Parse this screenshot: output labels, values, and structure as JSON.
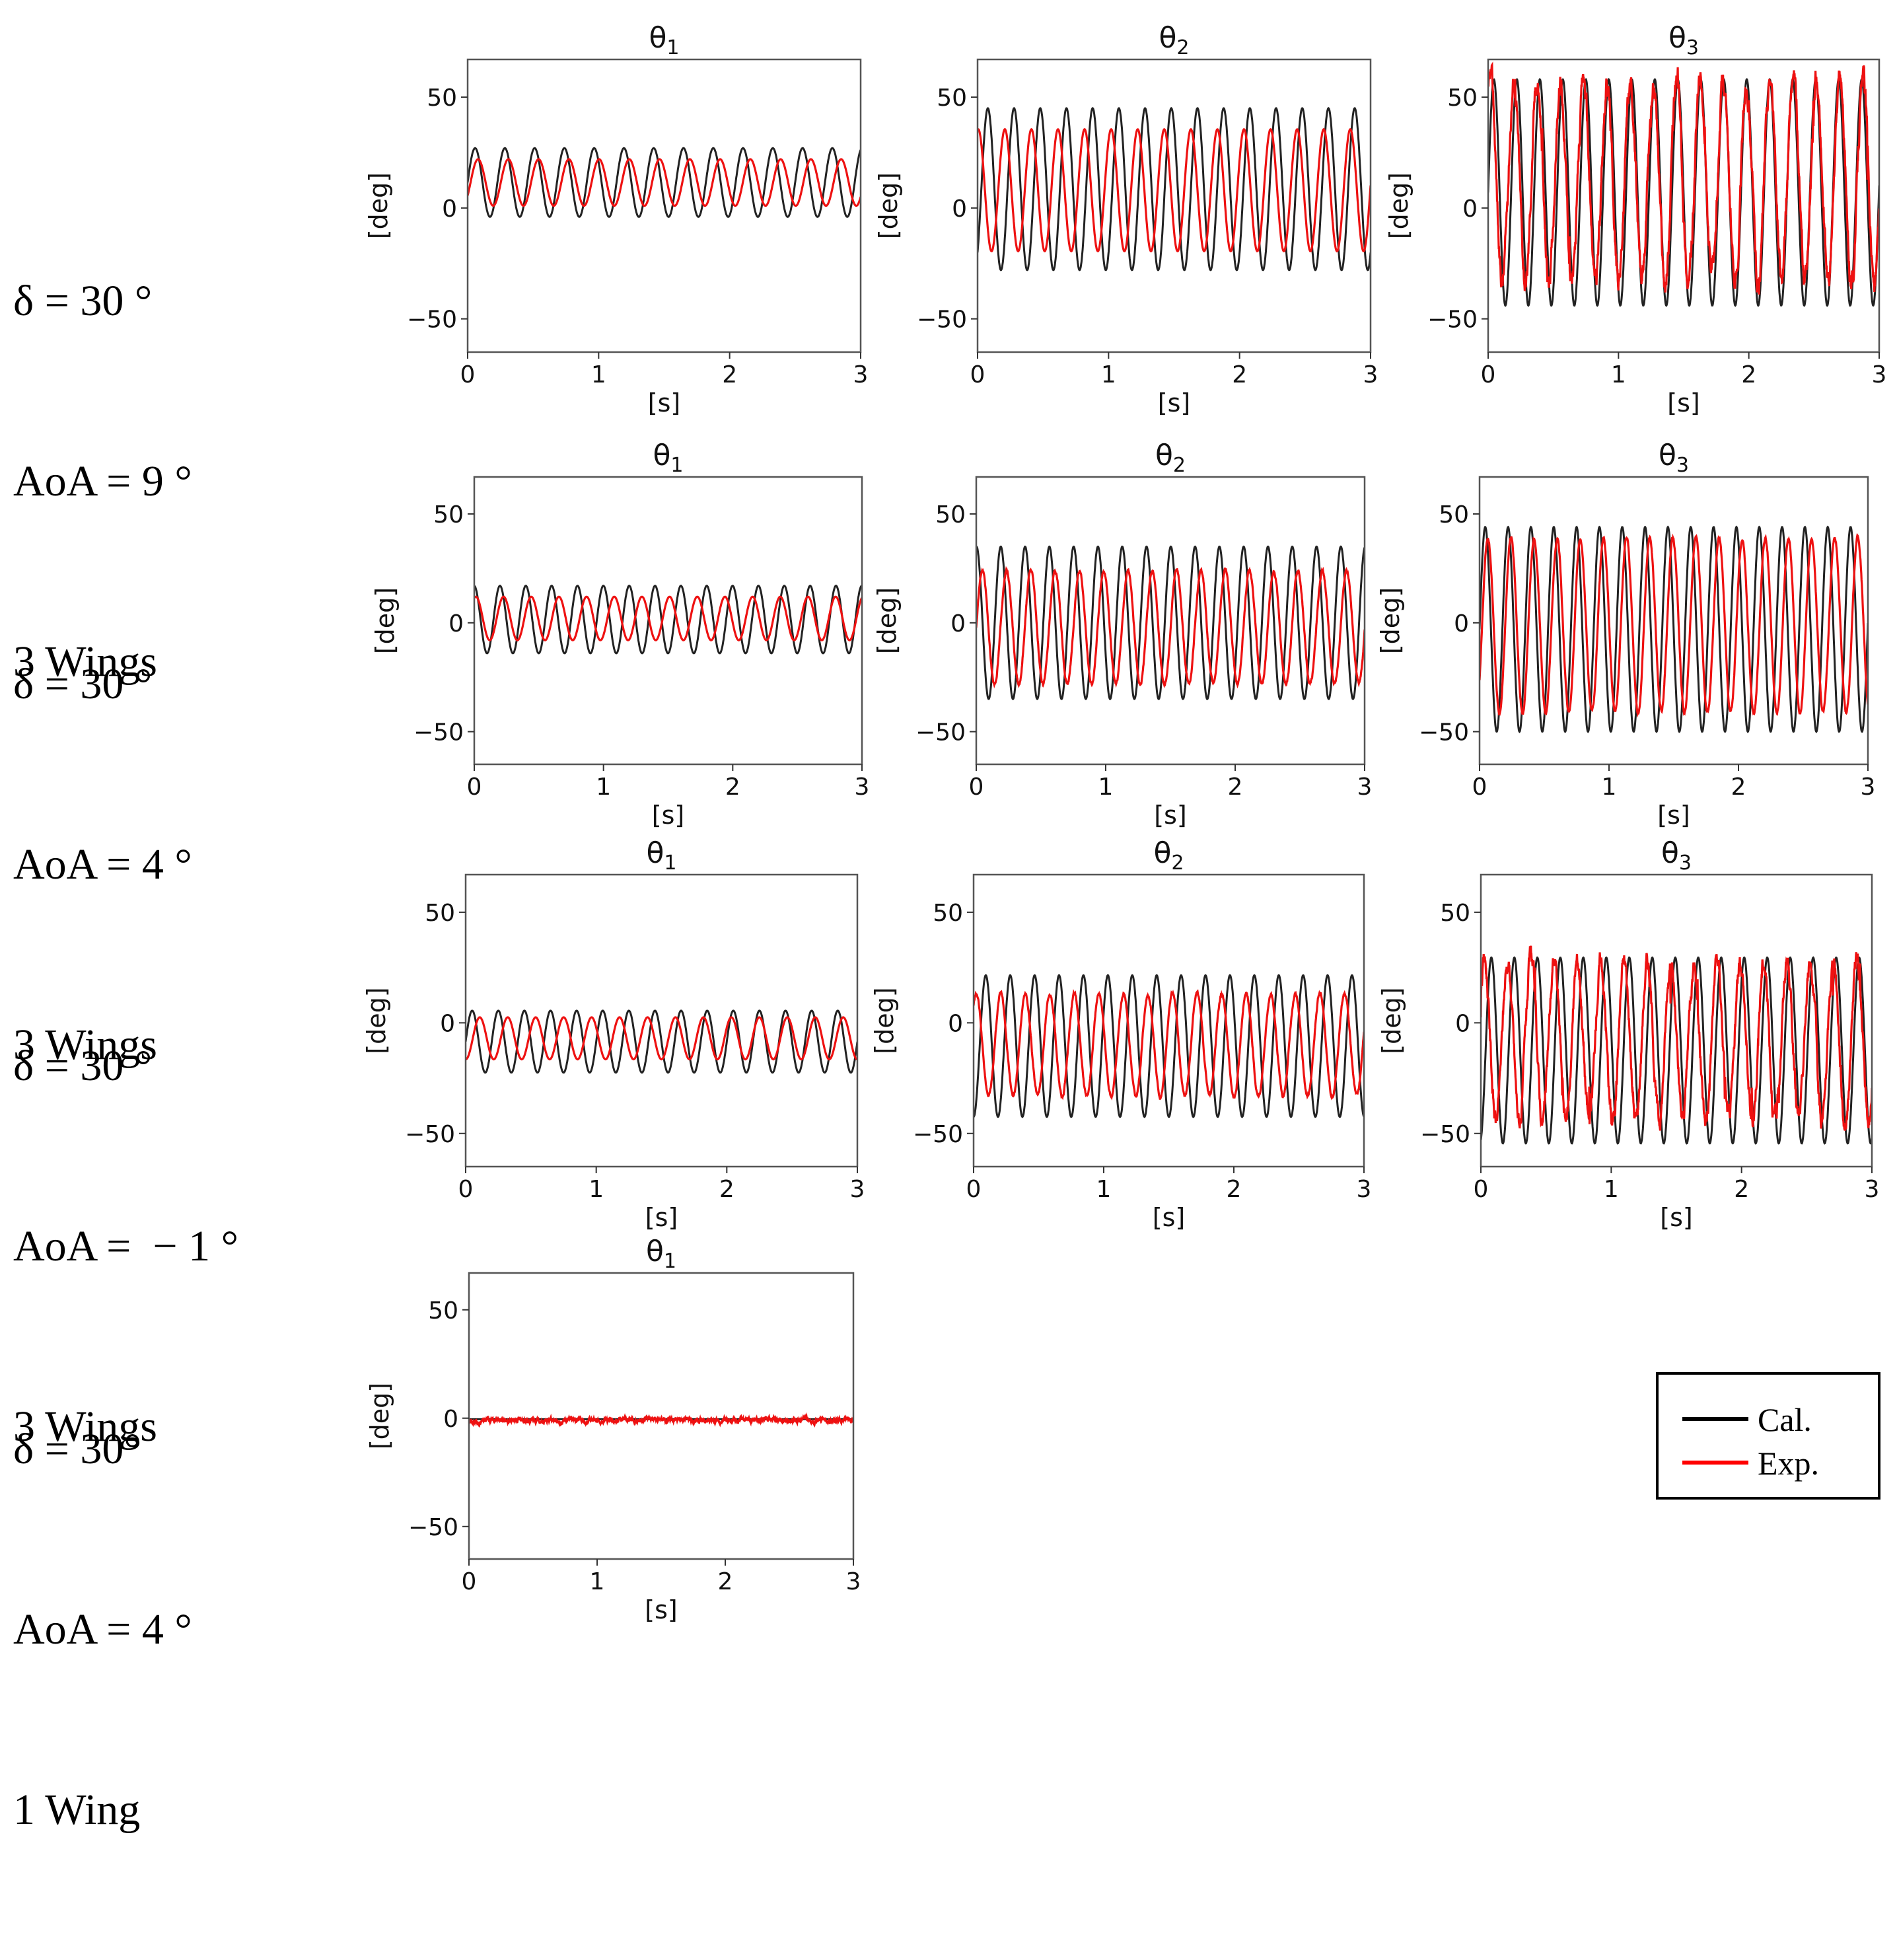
{
  "row_labels": [
    {
      "delta": "δ = 30 °",
      "aoa": "AoA = 9 °",
      "wings": "3 Wings"
    },
    {
      "delta": "δ = 30 °",
      "aoa": "AoA = 4 °",
      "wings": "3 Wings"
    },
    {
      "delta": "δ = 30 °",
      "aoa": "AoA =  − 1 °",
      "wings": "3 Wings"
    },
    {
      "delta": "δ = 30°",
      "aoa": "AoA = 4 °",
      "wings": "1 Wing"
    }
  ],
  "legend": [
    {
      "label": "Cal.",
      "color": "#000000"
    },
    {
      "label": "Exp.",
      "color": "#ff0000"
    }
  ],
  "colors": {
    "cal": "#222222",
    "exp": "#ee1111",
    "frame": "#555555"
  },
  "chart_data": [
    {
      "type": "line",
      "row": 0,
      "col": 0,
      "title": "θ",
      "title_sub": "1",
      "xlabel": "[s]",
      "ylabel": "[deg]",
      "xlim": [
        0,
        3
      ],
      "ylim": [
        -65,
        67
      ],
      "xticks": [
        0,
        1,
        2,
        3
      ],
      "yticks": [
        -50,
        0,
        50
      ],
      "ytick_labels": [
        "−50",
        "0",
        "50"
      ],
      "series": [
        {
          "name": "Cal.",
          "approx": {
            "mean": 11.5,
            "amp": 15.5,
            "freq": 4.4,
            "phase": 0.0
          }
        },
        {
          "name": "Exp.",
          "approx": {
            "mean": 11.5,
            "amp": 10.5,
            "freq": 4.33,
            "phase": -0.6,
            "noise": 0
          }
        }
      ]
    },
    {
      "type": "line",
      "row": 0,
      "col": 1,
      "title": "θ",
      "title_sub": "2",
      "xlabel": "[s]",
      "ylabel": "[deg]",
      "xlim": [
        0,
        3
      ],
      "ylim": [
        -65,
        67
      ],
      "xticks": [
        0,
        1,
        2,
        3
      ],
      "yticks": [
        -50,
        0,
        50
      ],
      "ytick_labels": [
        "−50",
        "0",
        "50"
      ],
      "series": [
        {
          "name": "Cal.",
          "approx": {
            "mean": 8.5,
            "amp": 36.5,
            "freq": 5.0,
            "phase": -0.9
          }
        },
        {
          "name": "Exp.",
          "approx": {
            "mean": 8.0,
            "amp": 27.5,
            "freq": 4.93,
            "phase": 1.4,
            "noise": 0
          }
        }
      ]
    },
    {
      "type": "line",
      "row": 0,
      "col": 2,
      "title": "θ",
      "title_sub": "3",
      "xlabel": "[s]",
      "ylabel": "[deg]",
      "xlim": [
        0,
        3
      ],
      "ylim": [
        -65,
        67
      ],
      "xticks": [
        0,
        1,
        2,
        3
      ],
      "yticks": [
        -50,
        0,
        50
      ],
      "ytick_labels": [
        "−50",
        "0",
        "50"
      ],
      "series": [
        {
          "name": "Cal.",
          "approx": {
            "mean": 7.0,
            "amp": 51.0,
            "freq": 5.67,
            "phase": 0.0
          }
        },
        {
          "name": "Exp.",
          "approx": {
            "mean": 12.0,
            "amp": 45.0,
            "freq": 5.6,
            "phase": 0.9,
            "noise": 7
          }
        }
      ]
    },
    {
      "type": "line",
      "row": 1,
      "col": 0,
      "title": "θ",
      "title_sub": "1",
      "xlabel": "[s]",
      "ylabel": "[deg]",
      "xlim": [
        0,
        3
      ],
      "ylim": [
        -65,
        67
      ],
      "xticks": [
        0,
        1,
        2,
        3
      ],
      "yticks": [
        -50,
        0,
        50
      ],
      "ytick_labels": [
        "−50",
        "0",
        "50"
      ],
      "series": [
        {
          "name": "Cal.",
          "approx": {
            "mean": 1.5,
            "amp": 15.5,
            "freq": 5.0,
            "phase": 1.6
          }
        },
        {
          "name": "Exp.",
          "approx": {
            "mean": 2.0,
            "amp": 10.0,
            "freq": 4.67,
            "phase": 1.2,
            "noise": 0
          }
        }
      ]
    },
    {
      "type": "line",
      "row": 1,
      "col": 1,
      "title": "θ",
      "title_sub": "2",
      "xlabel": "[s]",
      "ylabel": "[deg]",
      "xlim": [
        0,
        3
      ],
      "ylim": [
        -65,
        67
      ],
      "xticks": [
        0,
        1,
        2,
        3
      ],
      "yticks": [
        -50,
        0,
        50
      ],
      "ytick_labels": [
        "−50",
        "0",
        "50"
      ],
      "series": [
        {
          "name": "Cal.",
          "approx": {
            "mean": 0.0,
            "amp": 35.0,
            "freq": 5.33,
            "phase": 1.5
          }
        },
        {
          "name": "Exp.",
          "approx": {
            "mean": -2.0,
            "amp": 26.0,
            "freq": 5.33,
            "phase": 0.0,
            "noise": 1
          }
        }
      ]
    },
    {
      "type": "line",
      "row": 1,
      "col": 2,
      "title": "θ",
      "title_sub": "3",
      "xlabel": "[s]",
      "ylabel": "[deg]",
      "xlim": [
        0,
        3
      ],
      "ylim": [
        -65,
        67
      ],
      "xticks": [
        0,
        1,
        2,
        3
      ],
      "yticks": [
        -50,
        0,
        50
      ],
      "ytick_labels": [
        "−50",
        "0",
        "50"
      ],
      "series": [
        {
          "name": "Cal.",
          "approx": {
            "mean": -3.0,
            "amp": 47.0,
            "freq": 5.67,
            "phase": 0.0
          }
        },
        {
          "name": "Exp.",
          "approx": {
            "mean": -1.0,
            "amp": 40.0,
            "freq": 5.6,
            "phase": -0.7,
            "noise": 1
          }
        }
      ]
    },
    {
      "type": "line",
      "row": 2,
      "col": 0,
      "title": "θ",
      "title_sub": "1",
      "xlabel": "[s]",
      "ylabel": "[deg]",
      "xlim": [
        0,
        3
      ],
      "ylim": [
        -65,
        67
      ],
      "xticks": [
        0,
        1,
        2,
        3
      ],
      "yticks": [
        -50,
        0,
        50
      ],
      "ytick_labels": [
        "−50",
        "0",
        "50"
      ],
      "series": [
        {
          "name": "Cal.",
          "approx": {
            "mean": -8.5,
            "amp": 14.0,
            "freq": 5.0,
            "phase": 0.0
          }
        },
        {
          "name": "Exp.",
          "approx": {
            "mean": -7.0,
            "amp": 9.5,
            "freq": 4.67,
            "phase": -1.6,
            "noise": 0
          }
        }
      ]
    },
    {
      "type": "line",
      "row": 2,
      "col": 1,
      "title": "θ",
      "title_sub": "2",
      "xlabel": "[s]",
      "ylabel": "[deg]",
      "xlim": [
        0,
        3
      ],
      "ylim": [
        -65,
        67
      ],
      "xticks": [
        0,
        1,
        2,
        3
      ],
      "yticks": [
        -50,
        0,
        50
      ],
      "ytick_labels": [
        "−50",
        "0",
        "50"
      ],
      "series": [
        {
          "name": "Cal.",
          "approx": {
            "mean": -10.5,
            "amp": 32.0,
            "freq": 5.33,
            "phase": -1.57
          }
        },
        {
          "name": "Exp.",
          "approx": {
            "mean": -10.0,
            "amp": 23.0,
            "freq": 5.3,
            "phase": 0.9,
            "noise": 1
          }
        }
      ]
    },
    {
      "type": "line",
      "row": 2,
      "col": 2,
      "title": "θ",
      "title_sub": "3",
      "xlabel": "[s]",
      "ylabel": "[deg]",
      "xlim": [
        0,
        3
      ],
      "ylim": [
        -65,
        67
      ],
      "xticks": [
        0,
        1,
        2,
        3
      ],
      "yticks": [
        -50,
        0,
        50
      ],
      "ytick_labels": [
        "−50",
        "0",
        "50"
      ],
      "series": [
        {
          "name": "Cal.",
          "approx": {
            "mean": -12.5,
            "amp": 42.0,
            "freq": 5.67,
            "phase": -1.3
          }
        },
        {
          "name": "Exp.",
          "approx": {
            "mean": -8.0,
            "amp": 36.0,
            "freq": 5.6,
            "phase": 0.6,
            "noise": 6
          }
        }
      ]
    },
    {
      "type": "line",
      "row": 3,
      "col": 0,
      "title": "θ",
      "title_sub": "1",
      "xlabel": "[s]",
      "ylabel": "[deg]",
      "xlim": [
        0,
        3
      ],
      "ylim": [
        -65,
        67
      ],
      "xticks": [
        0,
        1,
        2,
        3
      ],
      "yticks": [
        -50,
        0,
        50
      ],
      "ytick_labels": [
        "−50",
        "0",
        "50"
      ],
      "series": [
        {
          "name": "Cal.",
          "approx": {
            "mean": -0.5,
            "amp": 0.0,
            "freq": 1.0,
            "phase": 0.0
          }
        },
        {
          "name": "Exp.",
          "approx": {
            "mean": -1.0,
            "amp": 0.0,
            "freq": 1.0,
            "phase": 0.0,
            "noise": 1.2
          }
        }
      ]
    }
  ]
}
